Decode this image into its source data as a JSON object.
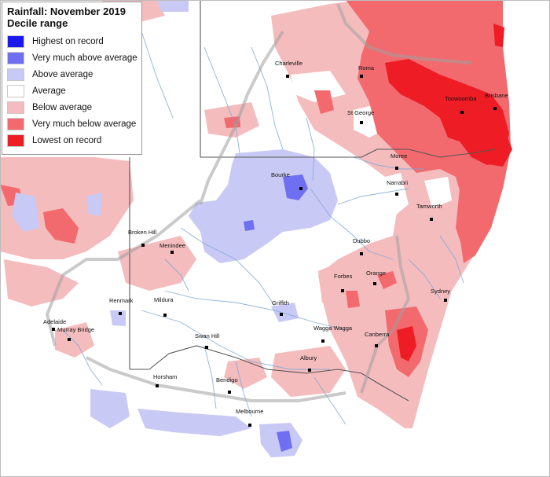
{
  "legend": {
    "title_line1": "Rainfall: November 2019",
    "title_line2": "Decile range",
    "items": [
      {
        "label": "Highest on record",
        "color": "#1a1aee"
      },
      {
        "label": "Very much above average",
        "color": "#6f6ff2"
      },
      {
        "label": "Above average",
        "color": "#c9c9f6"
      },
      {
        "label": "Average",
        "color": "#ffffff"
      },
      {
        "label": "Below average",
        "color": "#f5bcbe"
      },
      {
        "label": "Very much below average",
        "color": "#f26a6e"
      },
      {
        "label": "Lowest on record",
        "color": "#ee1c24"
      }
    ]
  },
  "towns": [
    {
      "name": "Charleville"
    },
    {
      "name": "Roma"
    },
    {
      "name": "Toowoomba"
    },
    {
      "name": "Brisbane"
    },
    {
      "name": "St George"
    },
    {
      "name": "Moree"
    },
    {
      "name": "Narrabri"
    },
    {
      "name": "Bourke"
    },
    {
      "name": "Tamworth"
    },
    {
      "name": "Broken Hill"
    },
    {
      "name": "Menindee"
    },
    {
      "name": "Dubbo"
    },
    {
      "name": "Orange"
    },
    {
      "name": "Forbes"
    },
    {
      "name": "Sydney"
    },
    {
      "name": "Renmark"
    },
    {
      "name": "Mildura"
    },
    {
      "name": "Griffith"
    },
    {
      "name": "Adelaide"
    },
    {
      "name": "Murray Bridge"
    },
    {
      "name": "Wagga Wagga"
    },
    {
      "name": "Canberra"
    },
    {
      "name": "Swan Hill"
    },
    {
      "name": "Albury"
    },
    {
      "name": "Horsham"
    },
    {
      "name": "Bendigo"
    },
    {
      "name": "Melbourne"
    }
  ]
}
